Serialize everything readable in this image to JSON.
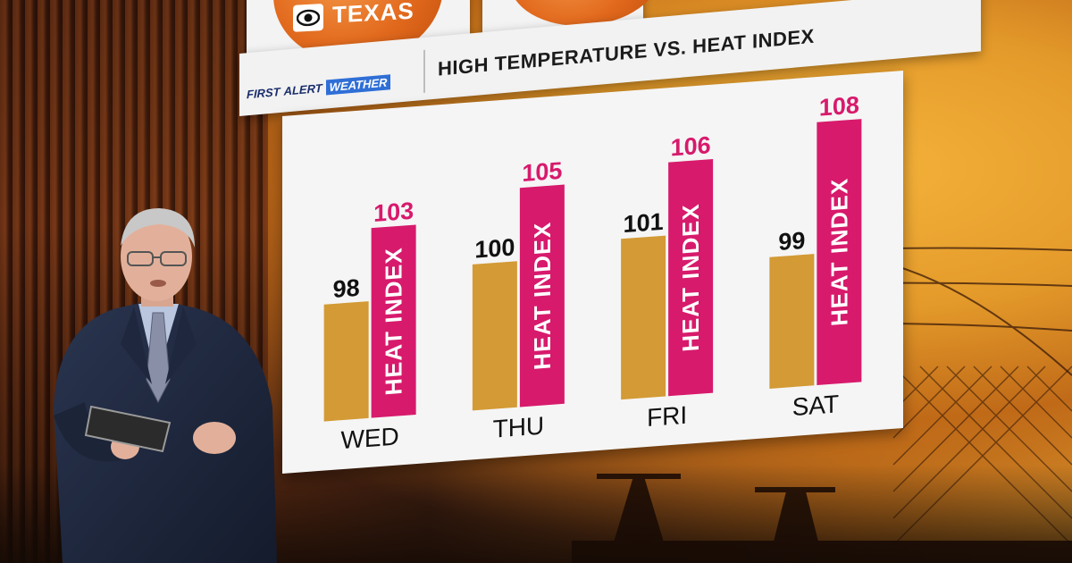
{
  "logo": {
    "network_icon": "cbs-eye-icon",
    "station_text": "TEXAS"
  },
  "brand": {
    "first": "FIRST",
    "alert": "ALERT",
    "weather": "WEATHER"
  },
  "chart_data": {
    "type": "bar",
    "title": "HIGH TEMPERATURE VS. HEAT INDEX",
    "categories": [
      "WED",
      "THU",
      "FRI",
      "SAT"
    ],
    "series": [
      {
        "values": [
          98,
          100,
          101,
          99
        ],
        "color": "#d39a35"
      },
      {
        "name": "HEAT INDEX",
        "values": [
          103,
          105,
          106,
          108
        ],
        "color": "#d71a6c"
      }
    ],
    "ylim": [
      90,
      110
    ],
    "grid": false,
    "legend": "none",
    "data_labels": true
  },
  "colors": {
    "high_temp_bar": "#d39a35",
    "heat_index_bar": "#d71a6c",
    "heat_index_label": "#d71a6c",
    "board": "#f5f5f5"
  }
}
